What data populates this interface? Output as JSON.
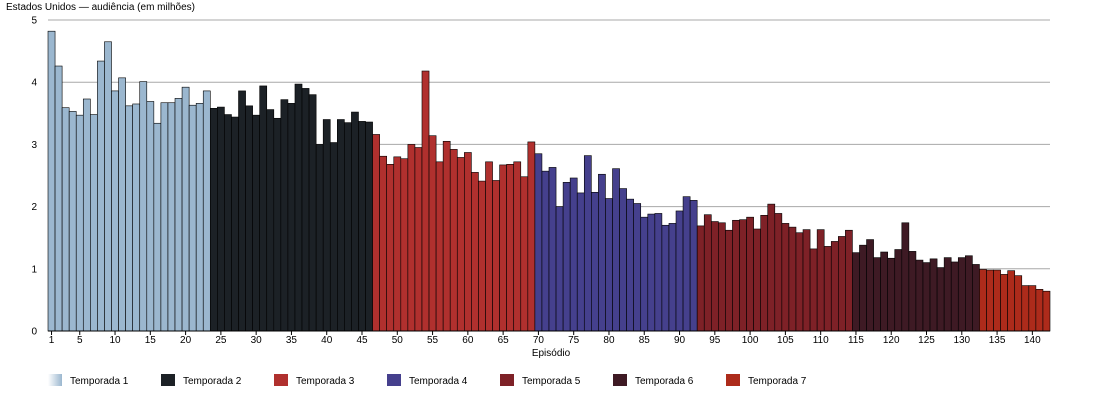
{
  "chart_data": {
    "type": "bar",
    "title": "Estados Unidos — audiência (em milhões)",
    "xlabel": "Episódio",
    "ylabel": "",
    "ylim": [
      0,
      5
    ],
    "yticks": [
      0,
      1,
      2,
      3,
      4,
      5
    ],
    "xticks": [
      1,
      5,
      10,
      15,
      20,
      25,
      30,
      35,
      40,
      45,
      50,
      55,
      60,
      65,
      70,
      75,
      80,
      85,
      90,
      95,
      100,
      105,
      110,
      115,
      120,
      125,
      130,
      135,
      140
    ],
    "grid": true,
    "legend_position": "bottom",
    "series": [
      {
        "name": "Temporada 1",
        "color": "#9bb7cf",
        "start_episode": 1,
        "values": [
          4.82,
          4.26,
          3.59,
          3.53,
          3.47,
          3.73,
          3.48,
          4.34,
          4.65,
          3.86,
          4.07,
          3.62,
          3.65,
          4.01,
          3.69,
          3.34,
          3.67,
          3.67,
          3.74,
          3.92,
          3.63,
          3.66,
          3.86
        ]
      },
      {
        "name": "Temporada 2",
        "color": "#1c2126",
        "start_episode": 24,
        "values": [
          3.58,
          3.6,
          3.48,
          3.44,
          3.86,
          3.62,
          3.47,
          3.94,
          3.56,
          3.42,
          3.72,
          3.66,
          3.97,
          3.9,
          3.8,
          3.0,
          3.4,
          3.03,
          3.4,
          3.35,
          3.52,
          3.37,
          3.36
        ]
      },
      {
        "name": "Temporada 3",
        "color": "#b0302e",
        "start_episode": 47,
        "values": [
          3.16,
          2.81,
          2.68,
          2.8,
          2.77,
          3.0,
          2.95,
          4.18,
          3.14,
          2.72,
          3.05,
          2.92,
          2.79,
          2.87,
          2.55,
          2.41,
          2.72,
          2.42,
          2.67,
          2.68,
          2.72,
          2.48,
          3.04
        ]
      },
      {
        "name": "Temporada 4",
        "color": "#45408d",
        "start_episode": 70,
        "values": [
          2.85,
          2.57,
          2.63,
          2.0,
          2.39,
          2.46,
          2.22,
          2.82,
          2.23,
          2.52,
          2.13,
          2.61,
          2.29,
          2.12,
          2.05,
          1.83,
          1.88,
          1.89,
          1.7,
          1.73,
          1.93,
          2.16,
          2.1
        ]
      },
      {
        "name": "Temporada 5",
        "color": "#7e2127",
        "start_episode": 93,
        "values": [
          1.69,
          1.87,
          1.76,
          1.74,
          1.62,
          1.78,
          1.79,
          1.83,
          1.64,
          1.86,
          2.04,
          1.89,
          1.73,
          1.67,
          1.58,
          1.63,
          1.32,
          1.63,
          1.36,
          1.44,
          1.52,
          1.62
        ]
      },
      {
        "name": "Temporada 6",
        "color": "#3e1a24",
        "start_episode": 115,
        "values": [
          1.26,
          1.38,
          1.47,
          1.18,
          1.27,
          1.17,
          1.31,
          1.74,
          1.28,
          1.14,
          1.1,
          1.16,
          1.02,
          1.18,
          1.11,
          1.18,
          1.21,
          1.07
        ]
      },
      {
        "name": "Temporada 7",
        "color": "#ad2b1b",
        "start_episode": 133,
        "values": [
          0.99,
          0.98,
          0.98,
          0.91,
          0.97,
          0.89,
          0.73,
          0.73,
          0.67,
          0.64
        ]
      }
    ]
  }
}
